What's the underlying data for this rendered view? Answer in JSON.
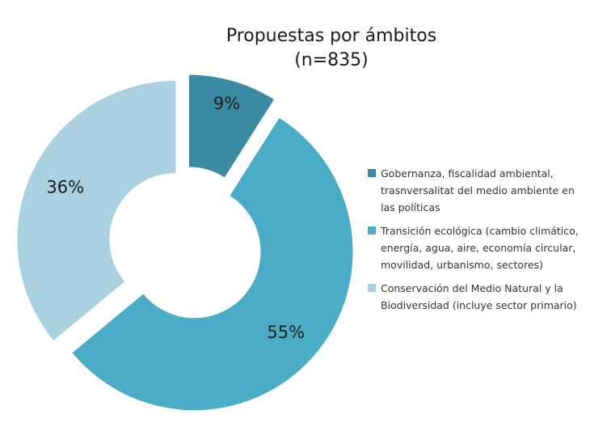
{
  "chart_data": {
    "type": "pie",
    "title": "Propuestas por ámbitos",
    "subtitle": "(n=835)",
    "legend_position": "right",
    "slices": [
      {
        "label": "Gobernanza, fiscalidad ambiental, trasnversalitat del medio ambiente en las políticas",
        "value": 9,
        "value_label": "9%",
        "color": "#3a8aa3",
        "exploded": true
      },
      {
        "label": "Transición ecológica (cambio climático, energía, agua, aire, economía circular, movilidad, urbanismo, sectores)",
        "value": 55,
        "value_label": "55%",
        "color": "#4bacc6",
        "exploded": true
      },
      {
        "label": "Conservación del Medio Natural y la Biodiversidad (incluye sector primario)",
        "value": 36,
        "value_label": "36%",
        "color": "#a9d1df",
        "exploded": true
      }
    ]
  }
}
